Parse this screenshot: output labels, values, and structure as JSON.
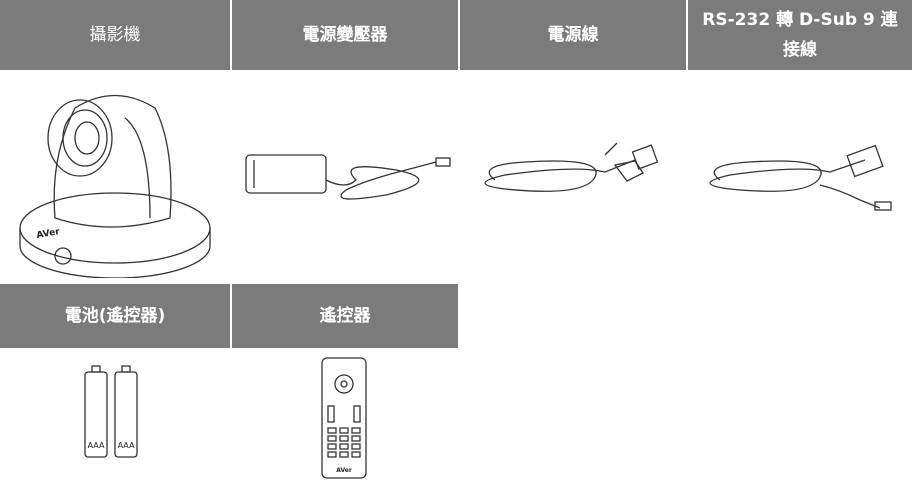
{
  "items": [
    {
      "label": "攝影機",
      "logo": "AVer"
    },
    {
      "label": "電源變壓器"
    },
    {
      "label": "電源線"
    },
    {
      "label": "RS-232 轉 D-Sub 9 連接線"
    },
    {
      "label": "電池(遙控器)",
      "battery_labels": [
        "AAA",
        "AAA"
      ]
    },
    {
      "label": "遙控器",
      "logo": "AVer"
    }
  ]
}
